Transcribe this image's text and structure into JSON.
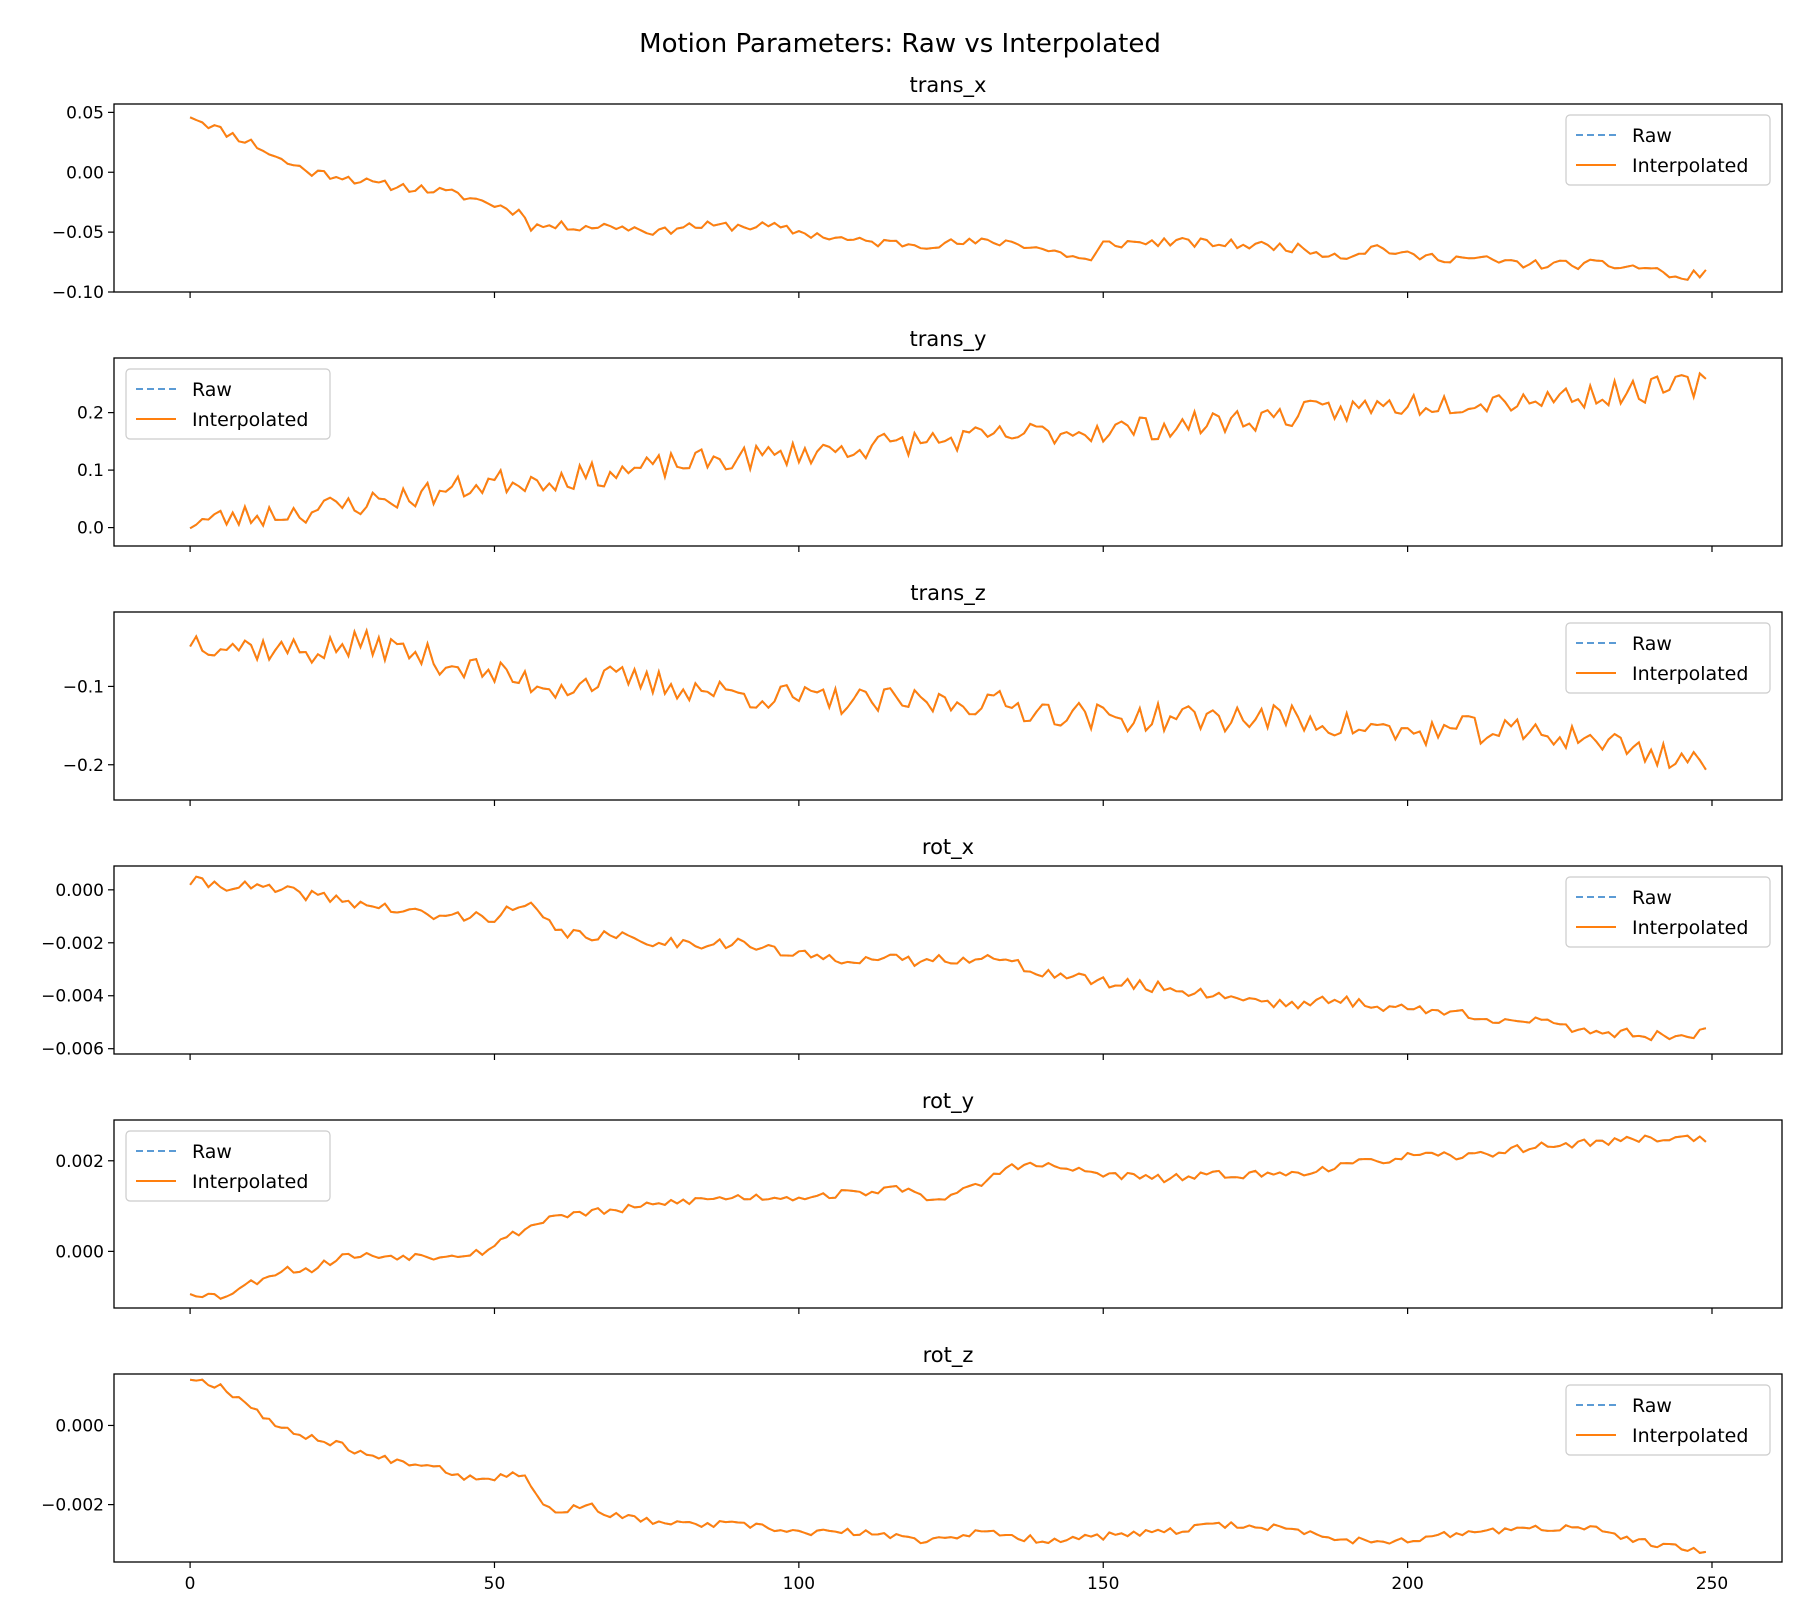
{
  "colors": {
    "raw": "#5b9bd5",
    "interpolated": "#ff7f0e"
  },
  "suptitle": "Motion Parameters: Raw vs Interpolated",
  "chart_data": [
    {
      "type": "line",
      "title": "trans_x",
      "xlim": [
        -12.5,
        261.5
      ],
      "xticks": [
        0,
        50,
        100,
        150,
        200,
        250
      ],
      "ylim": [
        -0.1,
        0.057
      ],
      "yticks": [
        0.05,
        0.0,
        -0.05,
        -0.1
      ],
      "yticklabels": [
        "0.05",
        "0.00",
        "−0.05",
        "−0.10"
      ],
      "legend": {
        "position": "upper-right",
        "entries": [
          "Raw",
          "Interpolated"
        ]
      },
      "x_start": 0,
      "x_step": 1,
      "anchors": [
        [
          0,
          0.048
        ],
        [
          5,
          0.035
        ],
        [
          10,
          0.025
        ],
        [
          15,
          0.01
        ],
        [
          20,
          0.0
        ],
        [
          25,
          -0.003
        ],
        [
          30,
          -0.01
        ],
        [
          35,
          -0.012
        ],
        [
          40,
          -0.015
        ],
        [
          45,
          -0.02
        ],
        [
          50,
          -0.027
        ],
        [
          55,
          -0.035
        ],
        [
          56,
          -0.045
        ],
        [
          60,
          -0.045
        ],
        [
          70,
          -0.045
        ],
        [
          78,
          -0.05
        ],
        [
          80,
          -0.045
        ],
        [
          95,
          -0.045
        ],
        [
          100,
          -0.05
        ],
        [
          110,
          -0.058
        ],
        [
          120,
          -0.06
        ],
        [
          135,
          -0.058
        ],
        [
          145,
          -0.07
        ],
        [
          148,
          -0.075
        ],
        [
          150,
          -0.06
        ],
        [
          160,
          -0.058
        ],
        [
          170,
          -0.06
        ],
        [
          180,
          -0.062
        ],
        [
          190,
          -0.07
        ],
        [
          195,
          -0.062
        ],
        [
          200,
          -0.07
        ],
        [
          210,
          -0.072
        ],
        [
          220,
          -0.077
        ],
        [
          230,
          -0.077
        ],
        [
          240,
          -0.08
        ],
        [
          245,
          -0.09
        ],
        [
          249,
          -0.082
        ]
      ],
      "noise": 0.004,
      "seed": 11,
      "series": [
        {
          "name": "Raw"
        },
        {
          "name": "Interpolated"
        }
      ]
    },
    {
      "type": "line",
      "title": "trans_y",
      "xlim": [
        -12.5,
        261.5
      ],
      "xticks": [
        0,
        50,
        100,
        150,
        200,
        250
      ],
      "ylim": [
        -0.032,
        0.295
      ],
      "yticks": [
        0.0,
        0.1,
        0.2
      ],
      "yticklabels": [
        "0.0",
        "0.1",
        "0.2"
      ],
      "legend": {
        "position": "upper-left",
        "entries": [
          "Raw",
          "Interpolated"
        ]
      },
      "x_start": 0,
      "x_step": 1,
      "anchors": [
        [
          0,
          0.01
        ],
        [
          10,
          0.02
        ],
        [
          20,
          0.03
        ],
        [
          30,
          0.045
        ],
        [
          40,
          0.06
        ],
        [
          50,
          0.08
        ],
        [
          60,
          0.085
        ],
        [
          70,
          0.095
        ],
        [
          80,
          0.11
        ],
        [
          90,
          0.12
        ],
        [
          100,
          0.13
        ],
        [
          110,
          0.14
        ],
        [
          120,
          0.15
        ],
        [
          130,
          0.155
        ],
        [
          140,
          0.165
        ],
        [
          150,
          0.17
        ],
        [
          160,
          0.175
        ],
        [
          170,
          0.185
        ],
        [
          180,
          0.195
        ],
        [
          190,
          0.205
        ],
        [
          200,
          0.215
        ],
        [
          210,
          0.22
        ],
        [
          220,
          0.225
        ],
        [
          230,
          0.23
        ],
        [
          240,
          0.24
        ],
        [
          249,
          0.25
        ]
      ],
      "noise": 0.022,
      "seed": 23,
      "series": [
        {
          "name": "Raw"
        },
        {
          "name": "Interpolated"
        }
      ]
    },
    {
      "type": "line",
      "title": "trans_z",
      "xlim": [
        -12.5,
        261.5
      ],
      "xticks": [
        0,
        50,
        100,
        150,
        200,
        250
      ],
      "ylim": [
        -0.245,
        -0.005
      ],
      "yticks": [
        -0.1,
        -0.2
      ],
      "yticklabels": [
        "−0.1",
        "−0.2"
      ],
      "legend": {
        "position": "upper-right",
        "entries": [
          "Raw",
          "Interpolated"
        ]
      },
      "x_start": 0,
      "x_step": 1,
      "anchors": [
        [
          0,
          -0.04
        ],
        [
          10,
          -0.05
        ],
        [
          20,
          -0.055
        ],
        [
          30,
          -0.045
        ],
        [
          40,
          -0.065
        ],
        [
          50,
          -0.085
        ],
        [
          60,
          -0.1
        ],
        [
          70,
          -0.09
        ],
        [
          80,
          -0.1
        ],
        [
          90,
          -0.11
        ],
        [
          100,
          -0.115
        ],
        [
          110,
          -0.12
        ],
        [
          120,
          -0.12
        ],
        [
          130,
          -0.12
        ],
        [
          140,
          -0.13
        ],
        [
          150,
          -0.14
        ],
        [
          160,
          -0.14
        ],
        [
          170,
          -0.14
        ],
        [
          180,
          -0.14
        ],
        [
          190,
          -0.15
        ],
        [
          200,
          -0.16
        ],
        [
          210,
          -0.155
        ],
        [
          220,
          -0.16
        ],
        [
          230,
          -0.165
        ],
        [
          240,
          -0.185
        ],
        [
          249,
          -0.195
        ]
      ],
      "noise": 0.018,
      "seed": 37,
      "series": [
        {
          "name": "Raw"
        },
        {
          "name": "Interpolated"
        }
      ]
    },
    {
      "type": "line",
      "title": "rot_x",
      "xlim": [
        -12.5,
        261.5
      ],
      "xticks": [
        0,
        50,
        100,
        150,
        200,
        250
      ],
      "ylim": [
        -0.0062,
        0.0009
      ],
      "yticks": [
        0.0,
        -0.002,
        -0.004,
        -0.006
      ],
      "yticklabels": [
        "0.000",
        "−0.002",
        "−0.004",
        "−0.006"
      ],
      "legend": {
        "position": "upper-right",
        "entries": [
          "Raw",
          "Interpolated"
        ]
      },
      "x_start": 0,
      "x_step": 1,
      "anchors": [
        [
          0,
          0.0003
        ],
        [
          10,
          0.0001
        ],
        [
          20,
          -0.0002
        ],
        [
          30,
          -0.0006
        ],
        [
          40,
          -0.001
        ],
        [
          50,
          -0.001
        ],
        [
          55,
          -0.0006
        ],
        [
          57,
          -0.0008
        ],
        [
          60,
          -0.0016
        ],
        [
          70,
          -0.0018
        ],
        [
          80,
          -0.002
        ],
        [
          90,
          -0.002
        ],
        [
          100,
          -0.0025
        ],
        [
          110,
          -0.0026
        ],
        [
          120,
          -0.0027
        ],
        [
          130,
          -0.0025
        ],
        [
          140,
          -0.0031
        ],
        [
          150,
          -0.0035
        ],
        [
          160,
          -0.0037
        ],
        [
          170,
          -0.004
        ],
        [
          180,
          -0.0043
        ],
        [
          190,
          -0.0042
        ],
        [
          200,
          -0.0045
        ],
        [
          210,
          -0.0047
        ],
        [
          220,
          -0.005
        ],
        [
          230,
          -0.0053
        ],
        [
          240,
          -0.0055
        ],
        [
          249,
          -0.0054
        ]
      ],
      "noise": 0.00022,
      "seed": 41,
      "series": [
        {
          "name": "Raw"
        },
        {
          "name": "Interpolated"
        }
      ]
    },
    {
      "type": "line",
      "title": "rot_y",
      "xlim": [
        -12.5,
        261.5
      ],
      "xticks": [
        0,
        50,
        100,
        150,
        200,
        250
      ],
      "ylim": [
        -0.00125,
        0.0029
      ],
      "yticks": [
        0.0,
        0.002
      ],
      "yticklabels": [
        "0.000",
        "0.002"
      ],
      "legend": {
        "position": "upper-left",
        "entries": [
          "Raw",
          "Interpolated"
        ]
      },
      "x_start": 0,
      "x_step": 1,
      "anchors": [
        [
          0,
          -0.0009
        ],
        [
          5,
          -0.001
        ],
        [
          10,
          -0.0007
        ],
        [
          15,
          -0.0004
        ],
        [
          20,
          -0.0004
        ],
        [
          25,
          -0.0001
        ],
        [
          30,
          -0.0001
        ],
        [
          40,
          -0.0001
        ],
        [
          48,
          0.0
        ],
        [
          52,
          0.0003
        ],
        [
          55,
          0.0005
        ],
        [
          60,
          0.0008
        ],
        [
          70,
          0.0009
        ],
        [
          80,
          0.0011
        ],
        [
          90,
          0.0012
        ],
        [
          100,
          0.0012
        ],
        [
          110,
          0.0013
        ],
        [
          118,
          0.0014
        ],
        [
          120,
          0.0012
        ],
        [
          125,
          0.0012
        ],
        [
          130,
          0.0015
        ],
        [
          135,
          0.0019
        ],
        [
          140,
          0.0019
        ],
        [
          145,
          0.0018
        ],
        [
          150,
          0.0017
        ],
        [
          160,
          0.0016
        ],
        [
          170,
          0.0017
        ],
        [
          180,
          0.0017
        ],
        [
          190,
          0.0019
        ],
        [
          200,
          0.0021
        ],
        [
          210,
          0.0021
        ],
        [
          220,
          0.0023
        ],
        [
          230,
          0.0024
        ],
        [
          240,
          0.0025
        ],
        [
          249,
          0.0025
        ]
      ],
      "noise": 9e-05,
      "seed": 53,
      "series": [
        {
          "name": "Raw"
        },
        {
          "name": "Interpolated"
        }
      ]
    },
    {
      "type": "line",
      "title": "rot_z",
      "xlim": [
        -12.5,
        261.5
      ],
      "xticks": [
        0,
        50,
        100,
        150,
        200,
        250
      ],
      "yticklabels": [
        "0.000",
        "−0.002"
      ],
      "ylim": [
        -0.00345,
        0.0013
      ],
      "yticks": [
        0.0,
        -0.002
      ],
      "legend": {
        "position": "upper-right",
        "entries": [
          "Raw",
          "Interpolated"
        ]
      },
      "x_start": 0,
      "x_step": 1,
      "anchors": [
        [
          0,
          0.0012
        ],
        [
          5,
          0.001
        ],
        [
          10,
          0.0005
        ],
        [
          15,
          -0.0001
        ],
        [
          20,
          -0.0003
        ],
        [
          25,
          -0.0005
        ],
        [
          30,
          -0.0008
        ],
        [
          40,
          -0.001
        ],
        [
          45,
          -0.0013
        ],
        [
          50,
          -0.0013
        ],
        [
          55,
          -0.0012
        ],
        [
          58,
          -0.002
        ],
        [
          60,
          -0.0022
        ],
        [
          65,
          -0.002
        ],
        [
          70,
          -0.0023
        ],
        [
          80,
          -0.0025
        ],
        [
          90,
          -0.0025
        ],
        [
          100,
          -0.0027
        ],
        [
          110,
          -0.0027
        ],
        [
          120,
          -0.0029
        ],
        [
          130,
          -0.0027
        ],
        [
          140,
          -0.0029
        ],
        [
          150,
          -0.0028
        ],
        [
          160,
          -0.0027
        ],
        [
          170,
          -0.0025
        ],
        [
          180,
          -0.0026
        ],
        [
          190,
          -0.0029
        ],
        [
          200,
          -0.0029
        ],
        [
          210,
          -0.0027
        ],
        [
          220,
          -0.0026
        ],
        [
          230,
          -0.0026
        ],
        [
          240,
          -0.003
        ],
        [
          249,
          -0.0032
        ]
      ],
      "noise": 9e-05,
      "seed": 67,
      "series": [
        {
          "name": "Raw"
        },
        {
          "name": "Interpolated"
        }
      ]
    }
  ]
}
